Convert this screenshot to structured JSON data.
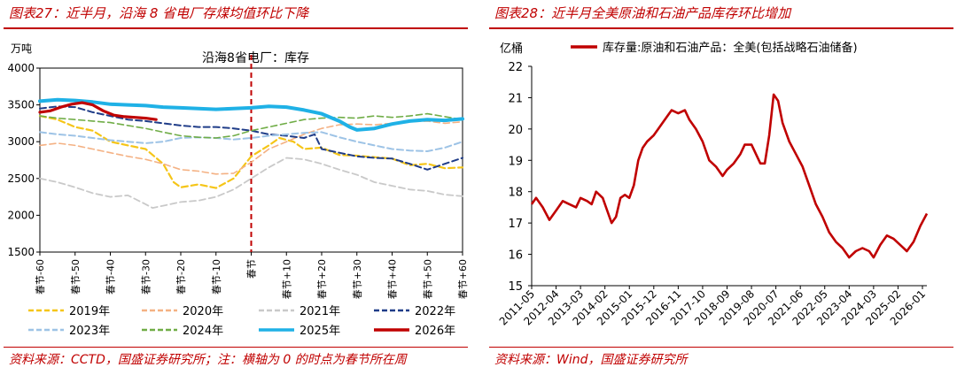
{
  "left": {
    "title": "图表27：近半月，沿海 8 省电厂存煤均值环比下降",
    "source": "资料来源：CCTD，国盛证券研究所；注：横轴为 0 的时点为春节所在周"
  },
  "right": {
    "title": "图表28：近半月全美原油和石油产品库存环比增加",
    "source": "资料来源：Wind，国盛证券研究所"
  },
  "chart_data": [
    {
      "type": "line",
      "title": "沿海8省电厂：库存",
      "ylabel": "万吨",
      "ylim": [
        1500,
        4000
      ],
      "yticks": [
        "1500",
        "2000",
        "2500",
        "3000",
        "3500",
        "4000"
      ],
      "xlim": [
        -60,
        60
      ],
      "xticks": [
        "春节-60",
        "春节-50",
        "春节-40",
        "春节-30",
        "春节-20",
        "春节-10",
        "春节",
        "春节+10",
        "春节+20",
        "春节+30",
        "春节+40",
        "春节+50",
        "春节+60"
      ],
      "tick_positions": [
        -60,
        -50,
        -40,
        -30,
        -20,
        -10,
        0,
        10,
        20,
        30,
        40,
        50,
        60
      ],
      "vertical_marker": 0,
      "series": [
        {
          "name": "2019年",
          "color": "#f5c518",
          "style": "dashed",
          "width": 2.2,
          "x": [
            -60,
            -55,
            -50,
            -45,
            -40,
            -35,
            -30,
            -25,
            -22,
            -20,
            -15,
            -10,
            -5,
            0,
            5,
            8,
            12,
            15,
            20,
            25,
            30,
            35,
            40,
            45,
            50,
            55,
            60
          ],
          "y": [
            3350,
            3300,
            3200,
            3150,
            3000,
            2950,
            2900,
            2700,
            2450,
            2380,
            2420,
            2370,
            2500,
            2800,
            2950,
            3050,
            3000,
            2900,
            2920,
            2820,
            2810,
            2790,
            2770,
            2680,
            2700,
            2640,
            2650
          ]
        },
        {
          "name": "2020年",
          "color": "#f4b183",
          "style": "dashed",
          "width": 1.6,
          "x": [
            -60,
            -55,
            -50,
            -45,
            -40,
            -35,
            -30,
            -25,
            -20,
            -15,
            -10,
            -5,
            0,
            5,
            10,
            15,
            20,
            25,
            30,
            35,
            40,
            45,
            50,
            55,
            60
          ],
          "y": [
            2950,
            2980,
            2950,
            2900,
            2850,
            2800,
            2760,
            2700,
            2620,
            2600,
            2560,
            2570,
            2720,
            2900,
            3000,
            3100,
            3180,
            3230,
            3240,
            3230,
            3250,
            3270,
            3280,
            3250,
            3270
          ]
        },
        {
          "name": "2021年",
          "color": "#c9c9c9",
          "style": "dashed",
          "width": 1.8,
          "x": [
            -60,
            -55,
            -50,
            -45,
            -40,
            -35,
            -30,
            -28,
            -25,
            -20,
            -15,
            -10,
            -5,
            0,
            5,
            10,
            15,
            20,
            25,
            30,
            35,
            40,
            45,
            50,
            55,
            60
          ],
          "y": [
            2500,
            2450,
            2380,
            2300,
            2250,
            2270,
            2150,
            2100,
            2130,
            2180,
            2200,
            2250,
            2350,
            2500,
            2650,
            2780,
            2760,
            2700,
            2620,
            2550,
            2450,
            2400,
            2350,
            2330,
            2280,
            2260
          ]
        },
        {
          "name": "2022年",
          "color": "#1f3c88",
          "style": "dashed",
          "width": 2.0,
          "x": [
            -60,
            -55,
            -50,
            -45,
            -40,
            -35,
            -30,
            -25,
            -20,
            -15,
            -10,
            -5,
            0,
            5,
            10,
            15,
            18,
            20,
            25,
            30,
            35,
            40,
            45,
            50,
            55,
            60
          ],
          "y": [
            3450,
            3480,
            3470,
            3400,
            3350,
            3300,
            3280,
            3250,
            3220,
            3200,
            3200,
            3180,
            3150,
            3100,
            3080,
            3050,
            3100,
            2900,
            2850,
            2800,
            2780,
            2770,
            2700,
            2620,
            2700,
            2780
          ]
        },
        {
          "name": "2023年",
          "color": "#9dc3e6",
          "style": "dashed",
          "width": 2.0,
          "x": [
            -60,
            -55,
            -50,
            -45,
            -40,
            -35,
            -30,
            -25,
            -20,
            -15,
            -10,
            -5,
            0,
            5,
            10,
            15,
            20,
            25,
            30,
            35,
            40,
            45,
            50,
            55,
            60
          ],
          "y": [
            3130,
            3100,
            3080,
            3050,
            3020,
            3000,
            2980,
            3000,
            3050,
            3060,
            3050,
            3030,
            3050,
            3080,
            3100,
            3120,
            3130,
            3060,
            3000,
            2950,
            2900,
            2880,
            2870,
            2920,
            3000
          ]
        },
        {
          "name": "2024年",
          "color": "#70ad47",
          "style": "dashed",
          "width": 1.6,
          "x": [
            -60,
            -55,
            -50,
            -45,
            -40,
            -35,
            -30,
            -25,
            -20,
            -15,
            -10,
            -5,
            0,
            5,
            10,
            15,
            20,
            25,
            30,
            35,
            40,
            45,
            50,
            55,
            60
          ],
          "y": [
            3350,
            3320,
            3300,
            3280,
            3260,
            3220,
            3180,
            3130,
            3080,
            3060,
            3050,
            3080,
            3150,
            3200,
            3250,
            3300,
            3320,
            3330,
            3320,
            3350,
            3330,
            3350,
            3380,
            3340,
            3300
          ]
        },
        {
          "name": "2025年",
          "color": "#1fb1e6",
          "style": "solid",
          "width": 4.0,
          "x": [
            -60,
            -55,
            -50,
            -45,
            -40,
            -35,
            -30,
            -25,
            -20,
            -15,
            -10,
            -5,
            0,
            5,
            10,
            15,
            20,
            25,
            28,
            30,
            35,
            40,
            45,
            50,
            55,
            60
          ],
          "y": [
            3550,
            3570,
            3560,
            3540,
            3510,
            3500,
            3490,
            3470,
            3460,
            3450,
            3440,
            3450,
            3460,
            3480,
            3470,
            3430,
            3380,
            3280,
            3200,
            3160,
            3180,
            3240,
            3280,
            3300,
            3290,
            3310
          ]
        },
        {
          "name": "2026年",
          "color": "#c00000",
          "style": "solid",
          "width": 3.2,
          "x": [
            -60,
            -57,
            -54,
            -51,
            -48,
            -45,
            -42,
            -39,
            -36,
            -33,
            -30,
            -27
          ],
          "y": [
            3400,
            3420,
            3470,
            3510,
            3530,
            3500,
            3420,
            3360,
            3340,
            3330,
            3320,
            3300
          ]
        }
      ]
    },
    {
      "type": "line",
      "title": "",
      "ylabel": "亿桶",
      "ylim": [
        15,
        22
      ],
      "yticks": [
        "15",
        "16",
        "17",
        "18",
        "19",
        "20",
        "21",
        "22"
      ],
      "xlim": [
        "2011-05",
        "2026-03"
      ],
      "xticks": [
        "2011-05",
        "2012-04",
        "2013-03",
        "2014-02",
        "2015-01",
        "2015-12",
        "2016-11",
        "2017-10",
        "2018-09",
        "2019-08",
        "2020-07",
        "2021-06",
        "2022-05",
        "2023-04",
        "2024-03",
        "2025-02",
        "2026-01"
      ],
      "series": [
        {
          "name": "库存量:原油和石油产品：全美(包括战略石油储备)",
          "color": "#c00000",
          "style": "solid",
          "width": 2.6,
          "x": [
            "2011-05",
            "2011-07",
            "2011-10",
            "2012-01",
            "2012-04",
            "2012-07",
            "2012-10",
            "2013-01",
            "2013-03",
            "2013-06",
            "2013-08",
            "2013-10",
            "2014-01",
            "2014-03",
            "2014-05",
            "2014-07",
            "2014-09",
            "2014-11",
            "2015-01",
            "2015-03",
            "2015-05",
            "2015-07",
            "2015-09",
            "2015-12",
            "2016-02",
            "2016-05",
            "2016-08",
            "2016-11",
            "2017-02",
            "2017-04",
            "2017-07",
            "2017-10",
            "2018-01",
            "2018-04",
            "2018-07",
            "2018-09",
            "2018-12",
            "2019-03",
            "2019-05",
            "2019-08",
            "2019-10",
            "2019-12",
            "2020-02",
            "2020-04",
            "2020-06",
            "2020-08",
            "2020-10",
            "2021-01",
            "2021-04",
            "2021-07",
            "2021-10",
            "2022-01",
            "2022-04",
            "2022-07",
            "2022-10",
            "2023-01",
            "2023-04",
            "2023-07",
            "2023-10",
            "2024-01",
            "2024-03",
            "2024-06",
            "2024-09",
            "2024-12",
            "2025-03",
            "2025-06",
            "2025-09",
            "2025-12",
            "2026-03"
          ],
          "y": [
            17.6,
            17.8,
            17.5,
            17.1,
            17.4,
            17.7,
            17.6,
            17.5,
            17.8,
            17.7,
            17.6,
            18.0,
            17.8,
            17.4,
            17.0,
            17.2,
            17.8,
            17.9,
            17.8,
            18.2,
            19.0,
            19.4,
            19.6,
            19.8,
            20.0,
            20.3,
            20.6,
            20.5,
            20.6,
            20.3,
            20.0,
            19.6,
            19.0,
            18.8,
            18.5,
            18.7,
            18.9,
            19.2,
            19.5,
            19.5,
            19.2,
            18.9,
            18.9,
            19.8,
            21.1,
            20.9,
            20.2,
            19.6,
            19.2,
            18.8,
            18.2,
            17.6,
            17.2,
            16.7,
            16.4,
            16.2,
            15.9,
            16.1,
            16.2,
            16.1,
            15.9,
            16.3,
            16.6,
            16.5,
            16.3,
            16.1,
            16.4,
            16.9,
            17.3
          ]
        }
      ]
    }
  ]
}
